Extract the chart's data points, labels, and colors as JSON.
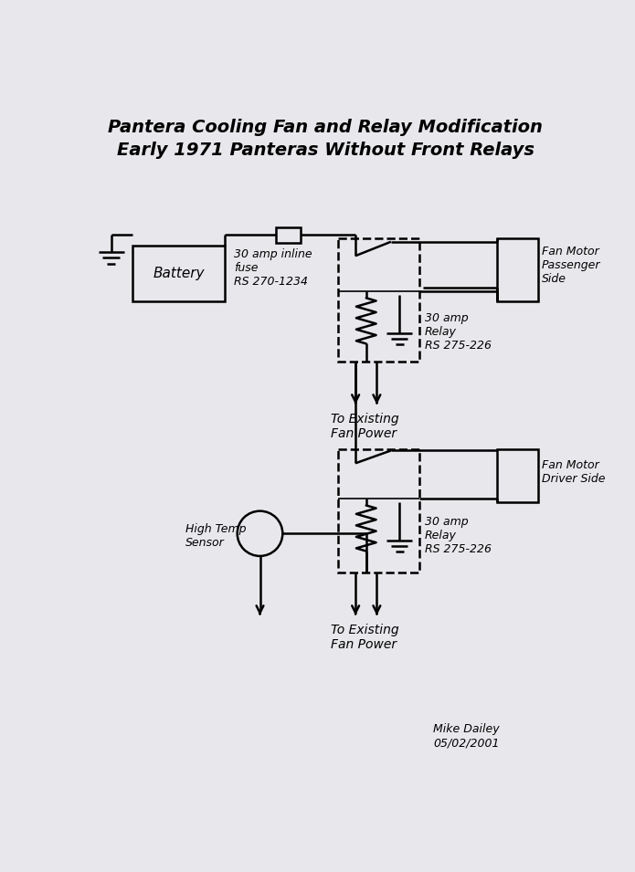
{
  "title_line1": "Pantera Cooling Fan and Relay Modification",
  "title_line2": "Early 1971 Panteras Without Front Relays",
  "bg_color": "#e8e8ec",
  "line_color": "#000000",
  "author": "Mike Dailey",
  "date": "05/02/2001",
  "figw": 6.95,
  "figh": 9.55
}
